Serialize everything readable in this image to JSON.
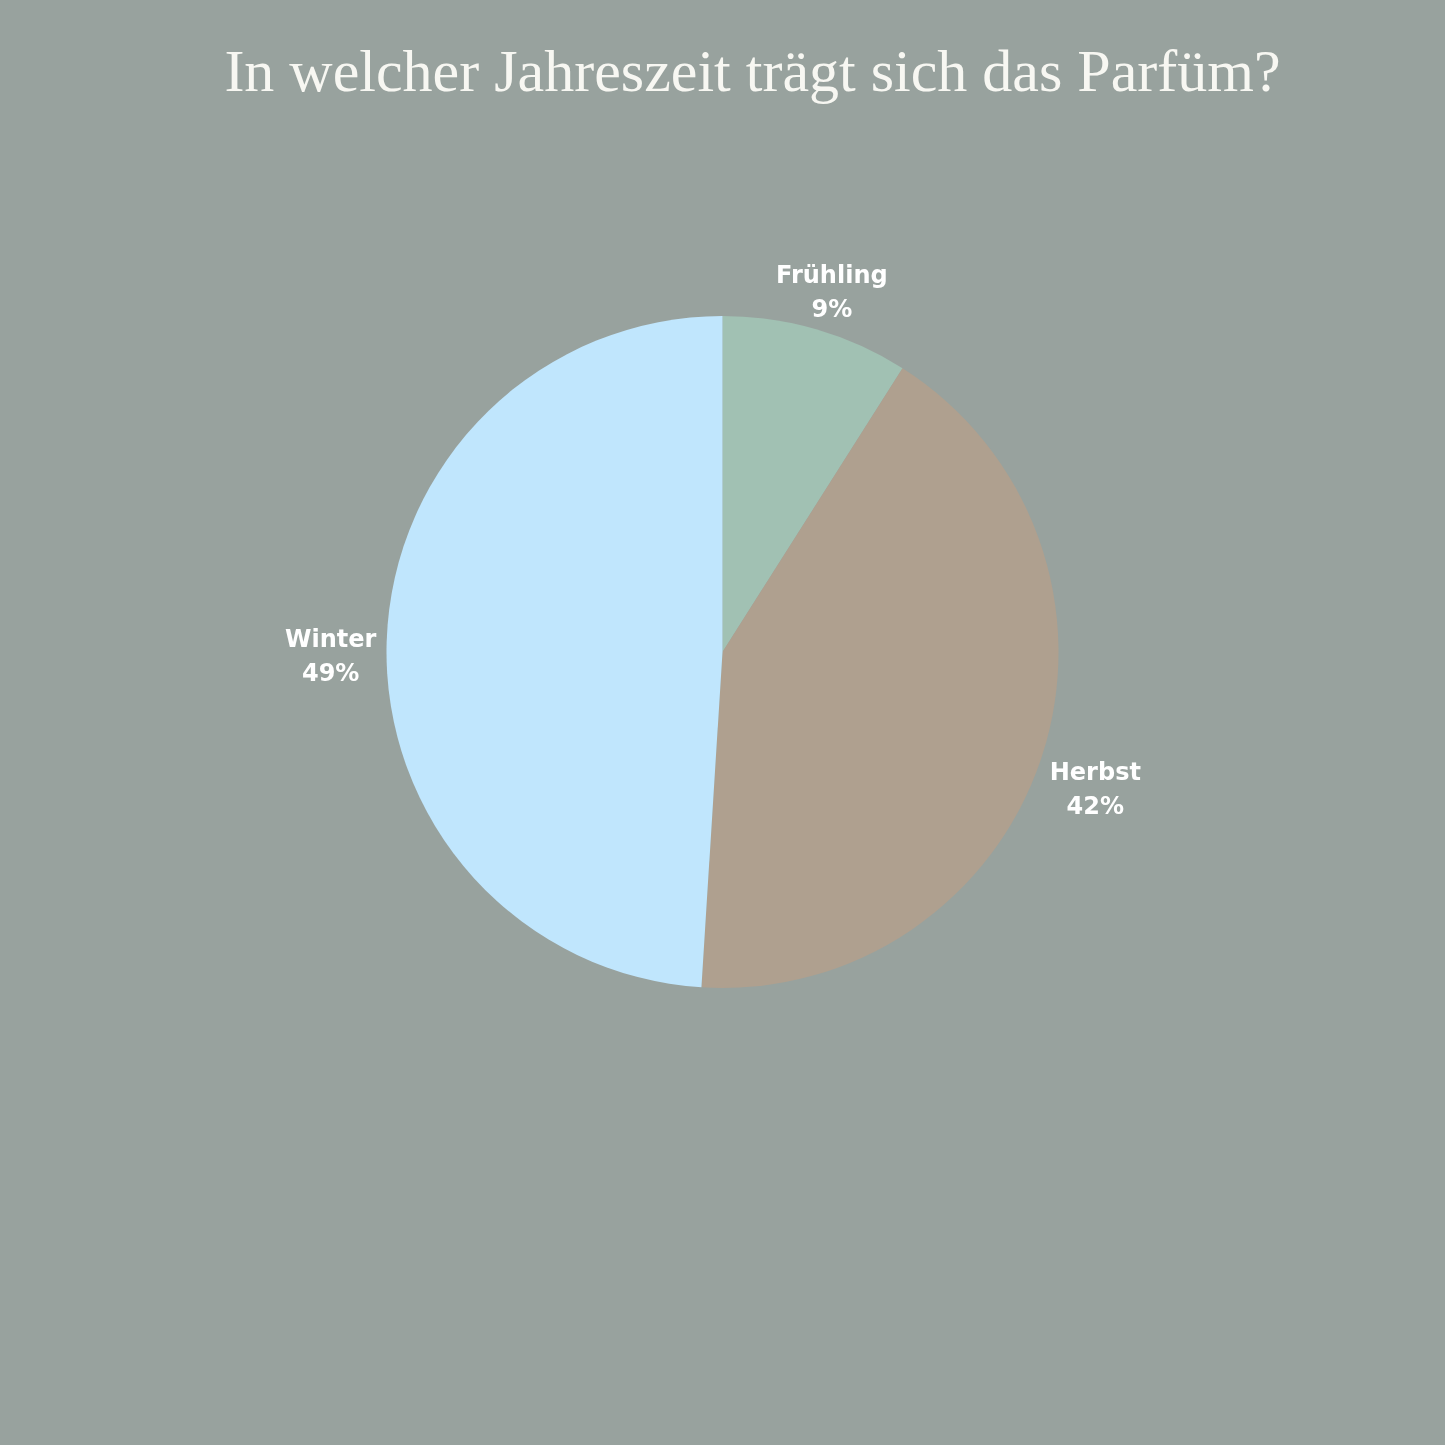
{
  "chart_data": {
    "type": "pie",
    "title": "In welcher Jahreszeit trägt sich das Parfüm?",
    "categories": [
      "Frühling",
      "Herbst",
      "Winter"
    ],
    "values": [
      9,
      42,
      49
    ],
    "value_labels": [
      "9%",
      "42%",
      "49%"
    ],
    "colors": [
      "#a1c1b3",
      "#afa08f",
      "#c0e6fd"
    ],
    "legend": false
  }
}
